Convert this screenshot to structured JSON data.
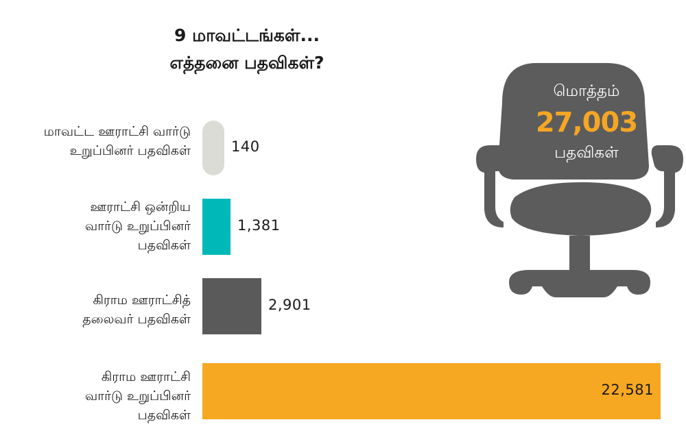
{
  "title": {
    "line1": "9 மாவட்டங்கள்...",
    "line2": "எத்தனை பதவிகள்?"
  },
  "total": {
    "label_top": "மொத்தம்",
    "value": "27,003",
    "label_bottom": "பதவிகள்",
    "icon": "office-chair-icon"
  },
  "chart_data": {
    "type": "bar",
    "orientation": "horizontal",
    "categories": [
      "மாவட்ட ஊராட்சி வார்டு\nஉறுப்பினர் பதவிகள்",
      "ஊராட்சி ஒன்றிய\nவார்டு உறுப்பினர்\nபதவிகள்",
      "கிராம ஊராட்சித்\nதலைவர் பதவிகள்",
      "கிராம ஊராட்சி\nவார்டு உறுப்பினர்\nபதவிகள்"
    ],
    "values": [
      140,
      1381,
      2901,
      22581
    ],
    "value_labels": [
      "140",
      "1,381",
      "2,901",
      "22,581"
    ],
    "colors": [
      "#dcdcd6",
      "#00b8b8",
      "#5a5a5a",
      "#f7a823"
    ],
    "title": "9 மாவட்டங்கள்... எத்தனை பதவிகள்?",
    "xlabel": "",
    "ylabel": "",
    "grid": false,
    "legend": "none"
  }
}
